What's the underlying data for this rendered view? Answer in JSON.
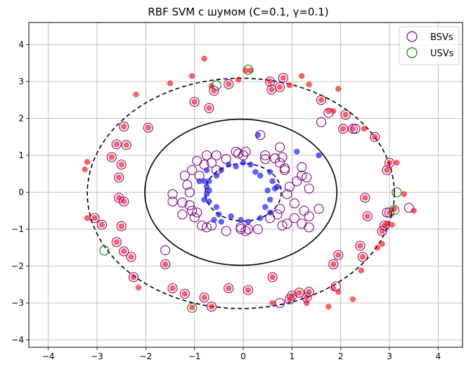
{
  "chart_data": {
    "type": "scatter",
    "title": "RBF SVM с шумом (C=0.1, γ=0.1)",
    "xlabel": "",
    "ylabel": "",
    "xlim": [
      -4.4,
      4.5
    ],
    "ylim": [
      -4.2,
      4.6
    ],
    "x_ticks": [
      -4,
      -3,
      -2,
      -1,
      0,
      1,
      2,
      3,
      4
    ],
    "y_ticks": [
      -4,
      -3,
      -2,
      -1,
      0,
      1,
      2,
      3,
      4
    ],
    "x_tick_labels": [
      "−4",
      "−3",
      "−2",
      "−1",
      "0",
      "1",
      "2",
      "3",
      "4"
    ],
    "y_tick_labels": [
      "−4",
      "−3",
      "−2",
      "−1",
      "0",
      "1",
      "2",
      "3",
      "4"
    ],
    "grid": true,
    "legend": {
      "placement": "top-right",
      "entries": [
        {
          "label": "BSVs",
          "color": "#800080",
          "marker": "hollow-circle"
        },
        {
          "label": "USVs",
          "color": "#008000",
          "marker": "hollow-circle"
        }
      ]
    },
    "colors": {
      "outer_class": "#ff0000",
      "inner_class": "#0000ff",
      "bsv": "#800080",
      "usv": "#008000",
      "boundary": "#000000"
    },
    "decision_boundary": {
      "style": "solid",
      "cx": -0.05,
      "cy": 0.0,
      "rx": 1.97,
      "ry": 1.98
    },
    "margins": [
      {
        "style": "dashed",
        "cx": -0.05,
        "cy": -0.03,
        "rx": 3.15,
        "ry": 3.12
      },
      {
        "style": "dashed",
        "cx": 0.0,
        "cy": 0.0,
        "rx": 0.78,
        "ry": 0.78
      }
    ],
    "series": [
      {
        "class": "outer",
        "points": [
          [
            -0.65,
            2.88
          ],
          [
            -0.6,
            2.75
          ],
          [
            -0.3,
            2.93
          ],
          [
            -0.1,
            3.05
          ],
          [
            0.05,
            3.3
          ],
          [
            0.15,
            3.3
          ],
          [
            0.55,
            3.0
          ],
          [
            0.58,
            2.78
          ],
          [
            0.75,
            2.85
          ],
          [
            0.82,
            3.1
          ],
          [
            0.95,
            2.9
          ],
          [
            -0.8,
            3.62
          ],
          [
            -1.05,
            3.15
          ],
          [
            -1.0,
            2.45
          ],
          [
            -0.7,
            2.28
          ],
          [
            -1.5,
            2.95
          ],
          [
            -2.2,
            2.65
          ],
          [
            -1.95,
            1.75
          ],
          [
            -2.45,
            1.78
          ],
          [
            -2.6,
            1.3
          ],
          [
            -2.4,
            1.28
          ],
          [
            -2.7,
            0.95
          ],
          [
            -2.5,
            0.75
          ],
          [
            -3.2,
            0.82
          ],
          [
            -3.25,
            0.62
          ],
          [
            -2.55,
            0.4
          ],
          [
            -2.55,
            -0.15
          ],
          [
            -2.45,
            -0.25
          ],
          [
            -2.5,
            -0.92
          ],
          [
            -2.9,
            -0.88
          ],
          [
            -3.05,
            -0.7
          ],
          [
            -3.2,
            -0.7
          ],
          [
            -2.6,
            -1.35
          ],
          [
            -2.45,
            -1.6
          ],
          [
            -2.3,
            -1.75
          ],
          [
            -2.25,
            -2.3
          ],
          [
            -2.15,
            -2.58
          ],
          [
            -1.6,
            -1.95
          ],
          [
            -1.45,
            -2.6
          ],
          [
            -1.2,
            -2.75
          ],
          [
            -1.05,
            -3.12
          ],
          [
            -0.8,
            -2.85
          ],
          [
            -0.65,
            -3.1
          ],
          [
            -0.3,
            -2.6
          ],
          [
            0.1,
            -2.65
          ],
          [
            0.6,
            -2.3
          ],
          [
            0.6,
            -3.0
          ],
          [
            0.95,
            -2.9
          ],
          [
            1.0,
            -2.8
          ],
          [
            1.15,
            -2.72
          ],
          [
            1.3,
            -2.85
          ],
          [
            1.35,
            -2.7
          ],
          [
            1.3,
            -3.0
          ],
          [
            1.75,
            -3.1
          ],
          [
            1.85,
            -2.6
          ],
          [
            1.95,
            -2.7
          ],
          [
            2.25,
            -2.9
          ],
          [
            1.85,
            -1.95
          ],
          [
            1.95,
            -1.7
          ],
          [
            2.4,
            -1.45
          ],
          [
            2.45,
            -1.75
          ],
          [
            2.42,
            -2.12
          ],
          [
            2.75,
            -1.5
          ],
          [
            2.85,
            -1.05
          ],
          [
            2.9,
            -0.9
          ],
          [
            2.85,
            -1.4
          ],
          [
            3.0,
            -0.55
          ],
          [
            2.95,
            -0.85
          ],
          [
            3.05,
            -0.88
          ],
          [
            3.1,
            -0.45
          ],
          [
            3.5,
            -0.5
          ],
          [
            3.3,
            -0.05
          ],
          [
            3.0,
            0.8
          ],
          [
            3.15,
            0.8
          ],
          [
            2.95,
            0.6
          ],
          [
            2.7,
            1.5
          ],
          [
            2.48,
            1.72
          ],
          [
            2.25,
            1.72
          ],
          [
            2.05,
            1.72
          ],
          [
            2.1,
            2.1
          ],
          [
            1.85,
            2.2
          ],
          [
            1.6,
            2.5
          ],
          [
            1.75,
            2.2
          ],
          [
            1.95,
            2.8
          ],
          [
            1.2,
            3.15
          ],
          [
            1.35,
            2.92
          ],
          [
            2.5,
            -0.15
          ],
          [
            2.55,
            -0.65
          ]
        ]
      },
      {
        "class": "inner",
        "points": [
          [
            -0.75,
            0.6
          ],
          [
            -0.9,
            0.3
          ],
          [
            -0.8,
            0.3
          ],
          [
            -0.7,
            0.3
          ],
          [
            -0.75,
            0.15
          ],
          [
            -0.7,
            0.05
          ],
          [
            -0.55,
            0.45
          ],
          [
            -0.45,
            0.6
          ],
          [
            -0.75,
            -0.05
          ],
          [
            -0.8,
            -0.2
          ],
          [
            -0.7,
            -0.25
          ],
          [
            -0.55,
            -0.4
          ],
          [
            -0.5,
            -0.6
          ],
          [
            -0.6,
            -0.75
          ],
          [
            -0.3,
            0.75
          ],
          [
            -0.15,
            0.7
          ],
          [
            0.0,
            0.8
          ],
          [
            0.15,
            0.75
          ],
          [
            0.25,
            0.55
          ],
          [
            0.35,
            0.45
          ],
          [
            0.55,
            0.55
          ],
          [
            0.6,
            0.3
          ],
          [
            0.5,
            0.05
          ],
          [
            0.65,
            0.1
          ],
          [
            0.7,
            0.15
          ],
          [
            0.55,
            -0.2
          ],
          [
            0.45,
            -0.4
          ],
          [
            0.55,
            -0.55
          ],
          [
            0.35,
            -0.7
          ],
          [
            0.1,
            -0.8
          ],
          [
            -0.05,
            -0.75
          ],
          [
            -0.25,
            -0.65
          ],
          [
            -0.45,
            -0.8
          ],
          [
            1.1,
            1.1
          ],
          [
            1.55,
            1.0
          ],
          [
            0.3,
            1.55
          ]
        ]
      },
      {
        "class": "bsv",
        "points": [
          [
            -0.6,
            2.75
          ],
          [
            -0.3,
            2.93
          ],
          [
            0.55,
            3.0
          ],
          [
            0.58,
            2.78
          ],
          [
            0.75,
            2.85
          ],
          [
            0.82,
            3.1
          ],
          [
            -1.0,
            2.45
          ],
          [
            -0.7,
            2.28
          ],
          [
            -1.95,
            1.75
          ],
          [
            -2.45,
            1.78
          ],
          [
            -2.6,
            1.3
          ],
          [
            -2.4,
            1.28
          ],
          [
            -2.7,
            0.95
          ],
          [
            -2.5,
            0.75
          ],
          [
            -2.55,
            0.4
          ],
          [
            -2.55,
            -0.15
          ],
          [
            -2.45,
            -0.25
          ],
          [
            -2.5,
            -0.92
          ],
          [
            -2.9,
            -0.88
          ],
          [
            -3.05,
            -0.7
          ],
          [
            -2.6,
            -1.35
          ],
          [
            -2.45,
            -1.6
          ],
          [
            -2.3,
            -1.75
          ],
          [
            -2.25,
            -2.3
          ],
          [
            -1.6,
            -1.95
          ],
          [
            -1.6,
            -1.57
          ],
          [
            -1.45,
            -2.6
          ],
          [
            -1.2,
            -2.75
          ],
          [
            -0.8,
            -2.85
          ],
          [
            -0.65,
            -3.1
          ],
          [
            -0.3,
            -2.6
          ],
          [
            0.1,
            -2.65
          ],
          [
            0.6,
            -2.3
          ],
          [
            0.75,
            -3.0
          ],
          [
            0.95,
            -2.9
          ],
          [
            1.0,
            -2.8
          ],
          [
            1.15,
            -2.72
          ],
          [
            1.35,
            -2.7
          ],
          [
            1.3,
            -2.85
          ],
          [
            1.85,
            -1.95
          ],
          [
            1.95,
            -1.7
          ],
          [
            1.9,
            -2.55
          ],
          [
            2.4,
            -1.45
          ],
          [
            2.45,
            -1.75
          ],
          [
            2.85,
            -1.05
          ],
          [
            2.9,
            -0.9
          ],
          [
            3.0,
            -0.55
          ],
          [
            2.95,
            -0.55
          ],
          [
            2.5,
            -0.15
          ],
          [
            2.55,
            -0.65
          ],
          [
            2.95,
            0.6
          ],
          [
            3.0,
            0.8
          ],
          [
            2.7,
            1.5
          ],
          [
            2.3,
            1.72
          ],
          [
            2.25,
            1.72
          ],
          [
            2.05,
            1.72
          ],
          [
            2.1,
            2.1
          ],
          [
            1.75,
            2.15
          ],
          [
            1.6,
            2.5
          ],
          [
            1.6,
            1.9
          ],
          [
            3.4,
            -0.42
          ],
          [
            -1.2,
            0.45
          ],
          [
            -1.15,
            0.2
          ],
          [
            -1.1,
            0.0
          ],
          [
            -1.25,
            -0.28
          ],
          [
            -1.1,
            -0.35
          ],
          [
            -1.05,
            -0.5
          ],
          [
            -1.0,
            -0.68
          ],
          [
            -0.85,
            -0.9
          ],
          [
            -0.75,
            -0.95
          ],
          [
            -0.65,
            -0.9
          ],
          [
            -0.35,
            -1.05
          ],
          [
            -0.05,
            -0.95
          ],
          [
            0.1,
            -1.0
          ],
          [
            0.3,
            -1.0
          ],
          [
            0.55,
            -0.7
          ],
          [
            0.7,
            -0.6
          ],
          [
            0.75,
            -0.45
          ],
          [
            0.8,
            -0.9
          ],
          [
            0.9,
            -0.85
          ],
          [
            1.05,
            -0.7
          ],
          [
            1.2,
            -0.85
          ],
          [
            1.35,
            -0.65
          ],
          [
            1.25,
            -0.5
          ],
          [
            1.05,
            -0.3
          ],
          [
            0.9,
            -0.05
          ],
          [
            0.95,
            0.15
          ],
          [
            1.1,
            0.3
          ],
          [
            1.2,
            0.45
          ],
          [
            1.35,
            0.1
          ],
          [
            1.2,
            0.68
          ],
          [
            0.85,
            0.6
          ],
          [
            0.75,
            0.8
          ],
          [
            0.8,
            0.95
          ],
          [
            0.65,
            0.92
          ],
          [
            0.75,
            1.22
          ],
          [
            0.85,
            0.65
          ],
          [
            0.45,
            0.9
          ],
          [
            0.45,
            1.0
          ],
          [
            0.0,
            1.0
          ],
          [
            0.05,
            1.1
          ],
          [
            -0.15,
            1.1
          ],
          [
            -0.1,
            1.05
          ],
          [
            -0.35,
            0.9
          ],
          [
            -0.55,
            1.0
          ],
          [
            -0.75,
            1.0
          ],
          [
            -0.8,
            0.75
          ],
          [
            -0.65,
            0.8
          ],
          [
            -0.95,
            0.85
          ],
          [
            -0.9,
            0.45
          ],
          [
            -0.55,
            0.6
          ],
          [
            -1.05,
            0.6
          ],
          [
            -1.45,
            -0.05
          ],
          [
            -1.45,
            -0.25
          ],
          [
            -1.25,
            -0.6
          ],
          [
            -0.95,
            -0.55
          ],
          [
            0.05,
            -1.05
          ],
          [
            -0.05,
            -1.0
          ],
          [
            0.35,
            1.55
          ],
          [
            1.55,
            -0.45
          ],
          [
            1.35,
            -0.95
          ],
          [
            1.3,
            0.4
          ]
        ]
      },
      {
        "class": "usv",
        "points": [
          [
            -2.85,
            -1.58
          ],
          [
            -1.05,
            -3.13
          ],
          [
            3.15,
            0.0
          ],
          [
            3.1,
            -0.48
          ],
          [
            -0.55,
            2.9
          ],
          [
            0.1,
            3.32
          ]
        ]
      }
    ]
  }
}
